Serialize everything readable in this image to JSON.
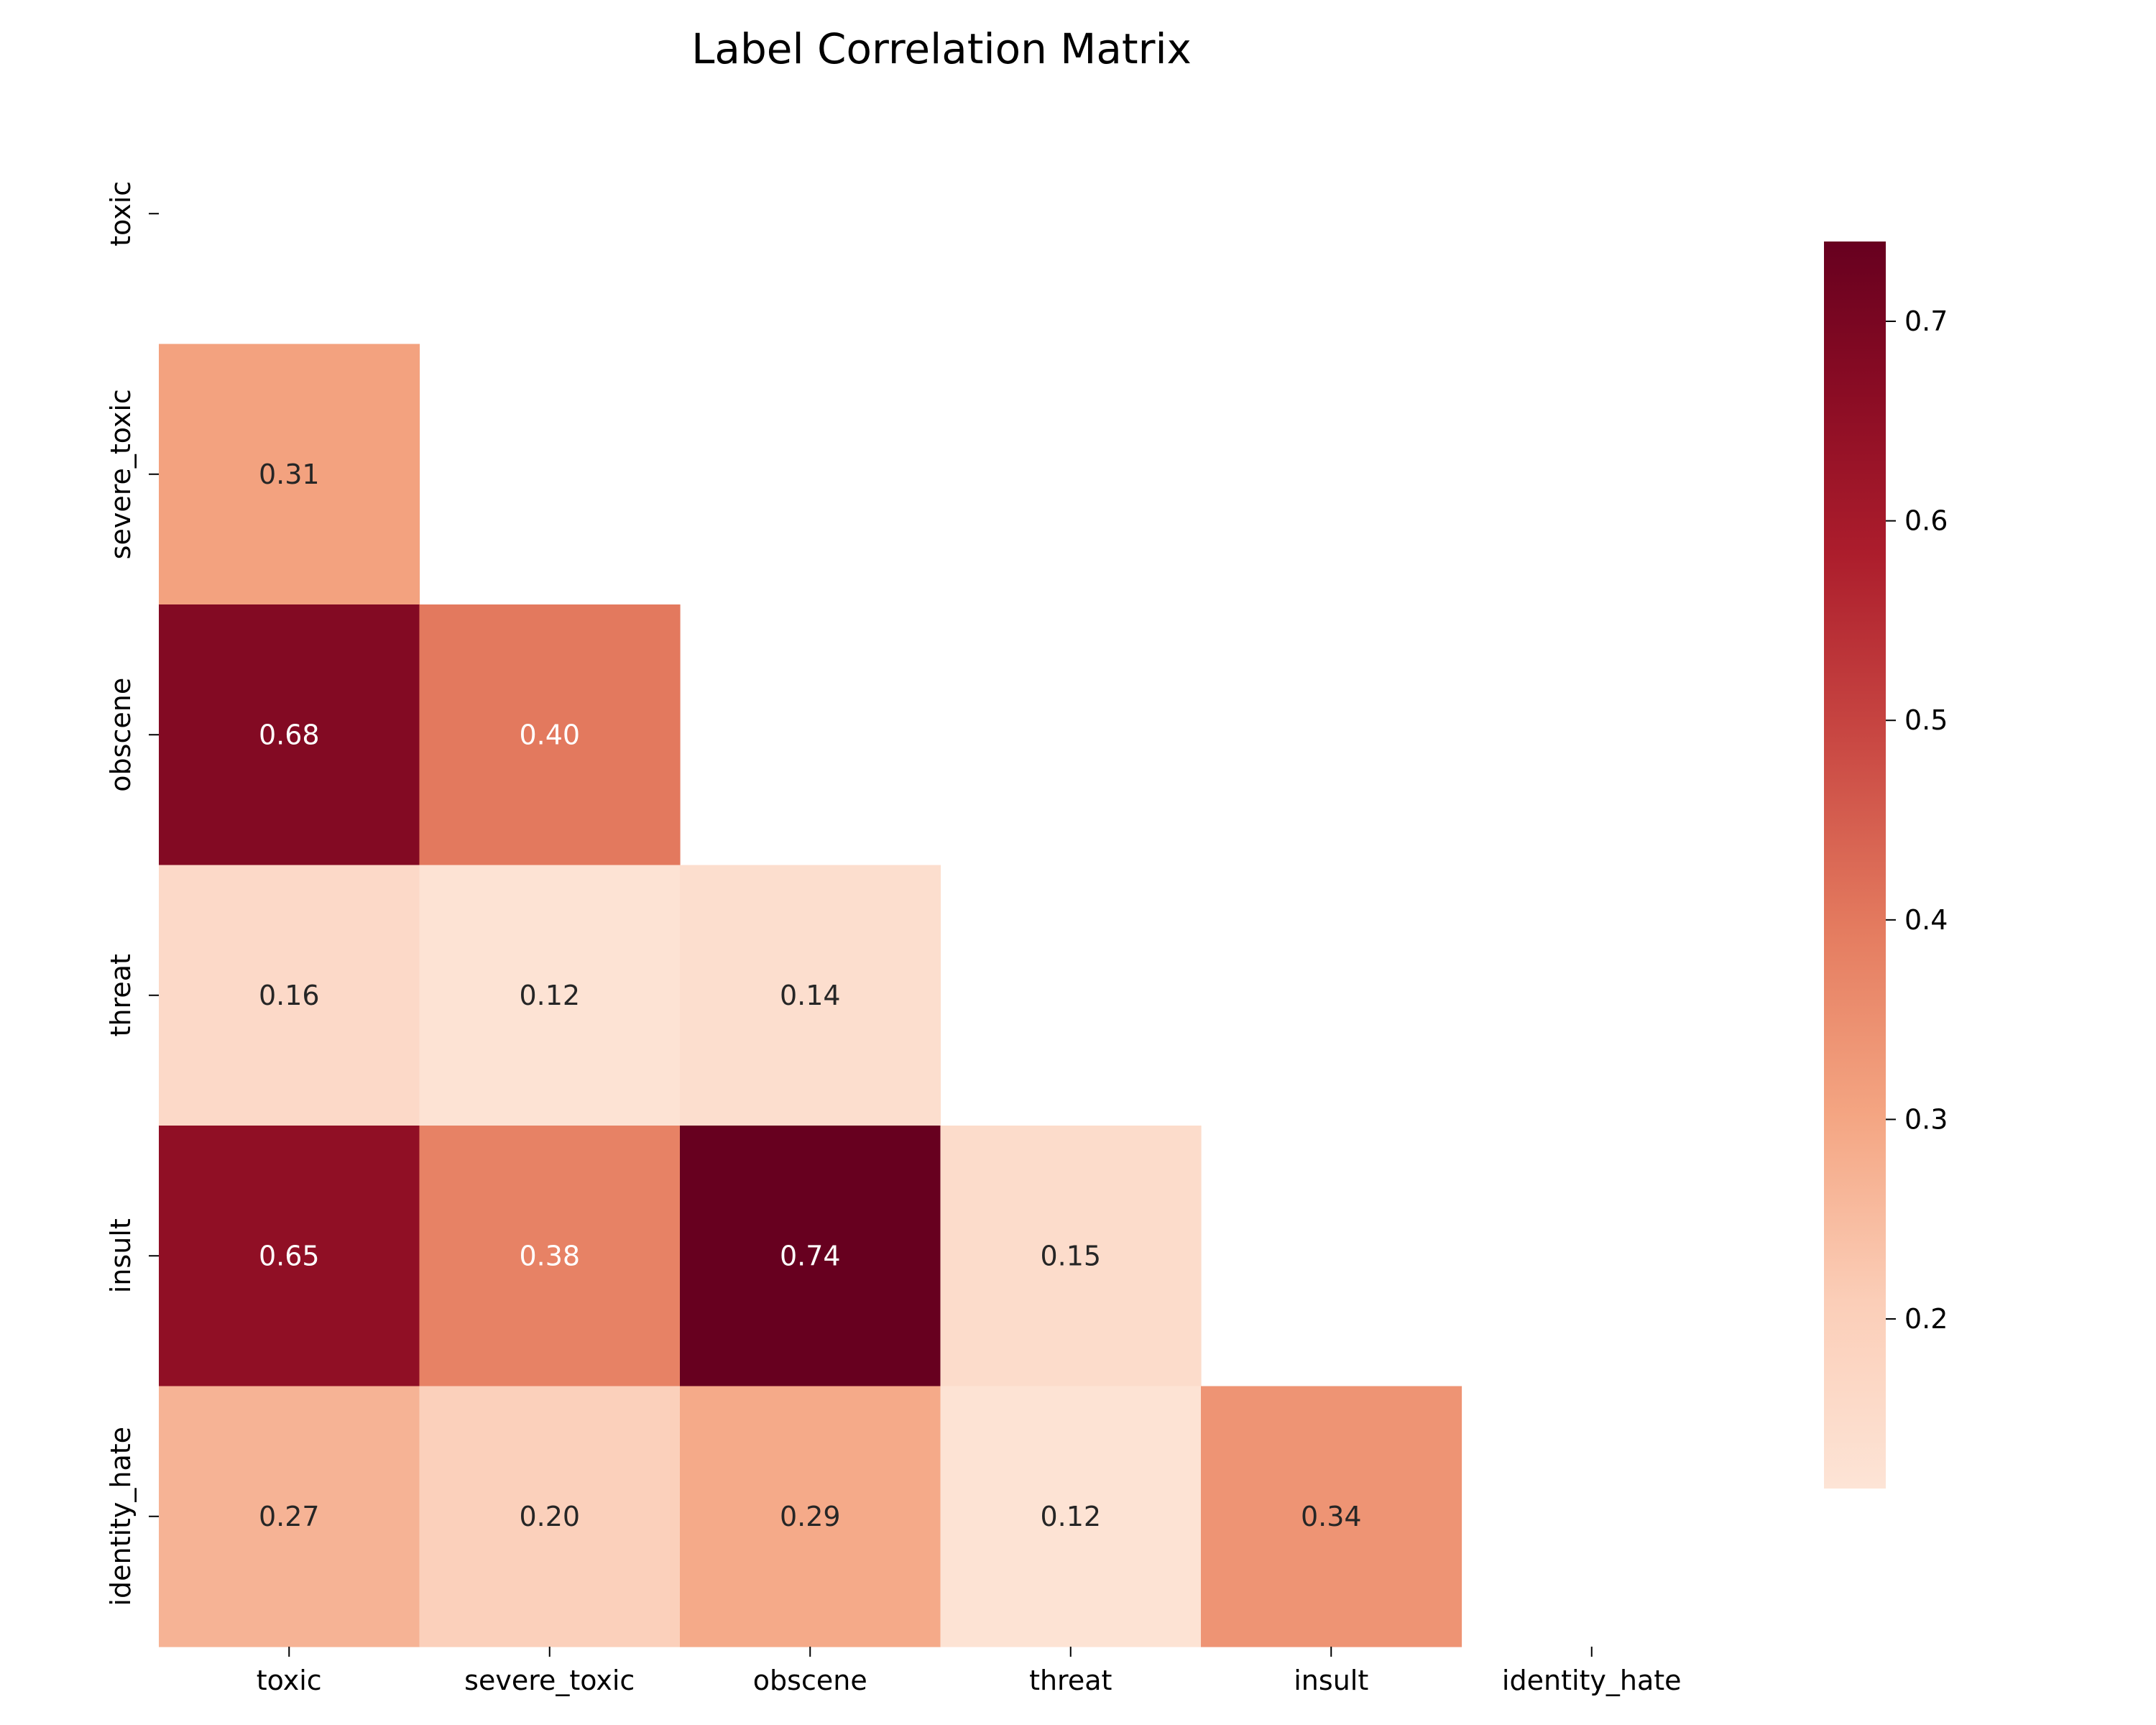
{
  "chart_data": {
    "type": "heatmap",
    "title": "Label Correlation Matrix",
    "labels": [
      "toxic",
      "severe_toxic",
      "obscene",
      "threat",
      "insult",
      "identity_hate"
    ],
    "mask": "upper-triangle-including-diagonal",
    "cells": [
      {
        "row": "severe_toxic",
        "col": "toxic",
        "value": 0.31,
        "text": "0.31"
      },
      {
        "row": "obscene",
        "col": "toxic",
        "value": 0.68,
        "text": "0.68"
      },
      {
        "row": "obscene",
        "col": "severe_toxic",
        "value": 0.4,
        "text": "0.40"
      },
      {
        "row": "threat",
        "col": "toxic",
        "value": 0.16,
        "text": "0.16"
      },
      {
        "row": "threat",
        "col": "severe_toxic",
        "value": 0.12,
        "text": "0.12"
      },
      {
        "row": "threat",
        "col": "obscene",
        "value": 0.14,
        "text": "0.14"
      },
      {
        "row": "insult",
        "col": "toxic",
        "value": 0.65,
        "text": "0.65"
      },
      {
        "row": "insult",
        "col": "severe_toxic",
        "value": 0.38,
        "text": "0.38"
      },
      {
        "row": "insult",
        "col": "obscene",
        "value": 0.74,
        "text": "0.74"
      },
      {
        "row": "insult",
        "col": "threat",
        "value": 0.15,
        "text": "0.15"
      },
      {
        "row": "identity_hate",
        "col": "toxic",
        "value": 0.27,
        "text": "0.27"
      },
      {
        "row": "identity_hate",
        "col": "severe_toxic",
        "value": 0.2,
        "text": "0.20"
      },
      {
        "row": "identity_hate",
        "col": "obscene",
        "value": 0.29,
        "text": "0.29"
      },
      {
        "row": "identity_hate",
        "col": "threat",
        "value": 0.12,
        "text": "0.12"
      },
      {
        "row": "identity_hate",
        "col": "insult",
        "value": 0.34,
        "text": "0.34"
      }
    ],
    "colormap": "RdBu_r (warm half)",
    "colorbar": {
      "range": [
        0.115,
        0.74
      ],
      "ticks": [
        0.2,
        0.3,
        0.4,
        0.5,
        0.6,
        0.7
      ],
      "tick_labels": [
        "0.2",
        "0.3",
        "0.4",
        "0.5",
        "0.6",
        "0.7"
      ]
    },
    "grid": false,
    "legend": "colorbar-right"
  }
}
